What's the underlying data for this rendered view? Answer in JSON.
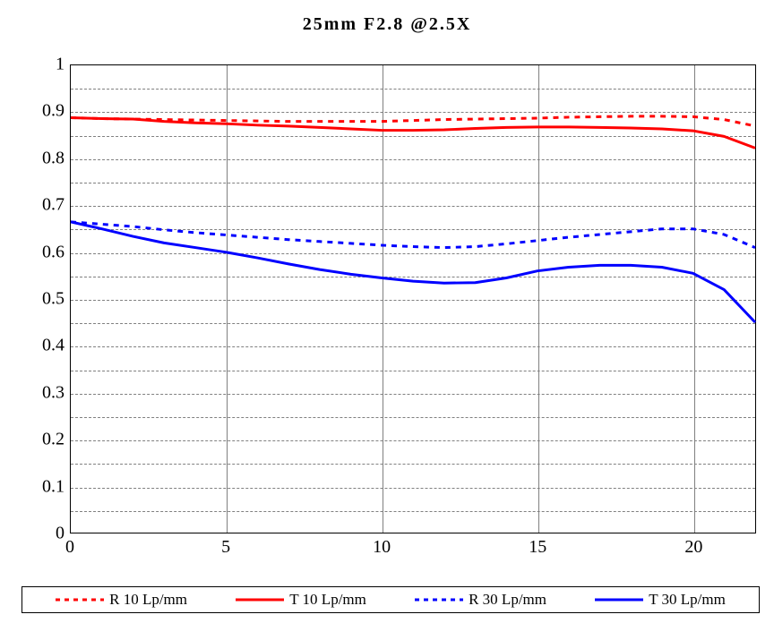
{
  "title": "25mm F2.8  @2.5X",
  "chart": {
    "type": "line",
    "background_color": "#ffffff",
    "grid_major_color": "#808080",
    "grid_minor_color": "#808080",
    "title_fontsize": 20,
    "tick_fontsize": 20,
    "legend_fontsize": 17,
    "xlim": [
      0,
      22
    ],
    "ylim": [
      0,
      1
    ],
    "xticks_major": [
      0,
      5,
      10,
      15,
      20
    ],
    "yticks_major": [
      0,
      0.1,
      0.2,
      0.3,
      0.4,
      0.5,
      0.6,
      0.7,
      0.8,
      0.9,
      1
    ],
    "yticks_labels": [
      "0",
      "0.1",
      "0.2",
      "0.3",
      "0.4",
      "0.5",
      "0.6",
      "0.7",
      "0.8",
      "0.9",
      "1"
    ],
    "yticks_minor_step": 0.05,
    "line_width": 3,
    "series": [
      {
        "label": "R 10 Lp/mm",
        "color": "#ff0000",
        "dash": "6,6",
        "x": [
          0,
          1,
          2,
          3,
          4,
          5,
          6,
          7,
          8,
          9,
          10,
          11,
          12,
          13,
          14,
          15,
          16,
          17,
          18,
          19,
          20,
          21,
          22
        ],
        "y": [
          0.888,
          0.886,
          0.885,
          0.884,
          0.883,
          0.882,
          0.881,
          0.88,
          0.88,
          0.88,
          0.88,
          0.882,
          0.884,
          0.885,
          0.886,
          0.887,
          0.889,
          0.89,
          0.891,
          0.891,
          0.89,
          0.884,
          0.87
        ]
      },
      {
        "label": "T 10 Lp/mm",
        "color": "#ff0000",
        "dash": "",
        "x": [
          0,
          1,
          2,
          3,
          4,
          5,
          6,
          7,
          8,
          9,
          10,
          11,
          12,
          13,
          14,
          15,
          16,
          17,
          18,
          19,
          20,
          21,
          22
        ],
        "y": [
          0.888,
          0.886,
          0.885,
          0.88,
          0.877,
          0.875,
          0.872,
          0.87,
          0.867,
          0.864,
          0.861,
          0.861,
          0.862,
          0.865,
          0.867,
          0.868,
          0.868,
          0.867,
          0.866,
          0.864,
          0.86,
          0.848,
          0.823
        ]
      },
      {
        "label": "R 30 Lp/mm",
        "color": "#0000ff",
        "dash": "6,6",
        "x": [
          0,
          1,
          2,
          3,
          4,
          5,
          6,
          7,
          8,
          9,
          10,
          11,
          12,
          13,
          14,
          15,
          16,
          17,
          18,
          19,
          20,
          21,
          22
        ],
        "y": [
          0.665,
          0.66,
          0.655,
          0.648,
          0.642,
          0.637,
          0.632,
          0.627,
          0.623,
          0.619,
          0.615,
          0.612,
          0.61,
          0.612,
          0.618,
          0.625,
          0.632,
          0.638,
          0.644,
          0.65,
          0.65,
          0.638,
          0.61
        ]
      },
      {
        "label": "T 30 Lp/mm",
        "color": "#0000ff",
        "dash": "",
        "x": [
          0,
          1,
          2,
          3,
          4,
          5,
          6,
          7,
          8,
          9,
          10,
          11,
          12,
          13,
          14,
          15,
          16,
          17,
          18,
          19,
          20,
          21,
          22
        ],
        "y": [
          0.665,
          0.65,
          0.634,
          0.62,
          0.61,
          0.6,
          0.588,
          0.575,
          0.563,
          0.553,
          0.545,
          0.538,
          0.534,
          0.535,
          0.545,
          0.56,
          0.568,
          0.572,
          0.572,
          0.568,
          0.555,
          0.52,
          0.45
        ]
      }
    ]
  },
  "legend": {
    "items": [
      {
        "label": "R 10 Lp/mm",
        "color": "#ff0000",
        "dash": "5,5"
      },
      {
        "label": "T 10 Lp/mm",
        "color": "#ff0000",
        "dash": ""
      },
      {
        "label": "R 30 Lp/mm",
        "color": "#0000ff",
        "dash": "5,5"
      },
      {
        "label": "T 30 Lp/mm",
        "color": "#0000ff",
        "dash": ""
      }
    ]
  }
}
